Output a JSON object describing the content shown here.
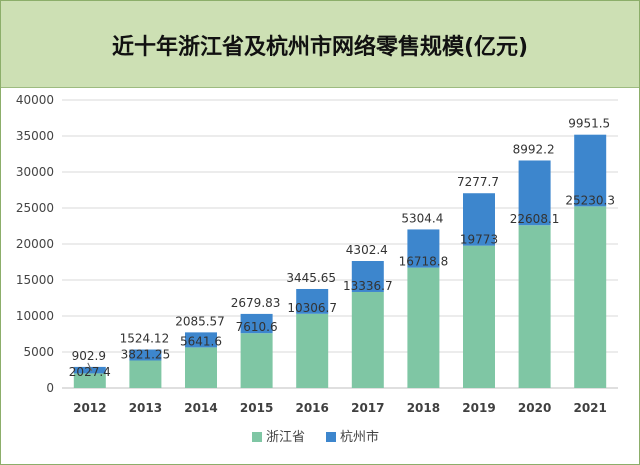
{
  "chart_data": {
    "type": "bar",
    "stacked": true,
    "title": "近十年浙江省及杭州市网络零售规模(亿元)",
    "xlabel": "",
    "ylabel": "",
    "categories": [
      "2012",
      "2013",
      "2014",
      "2015",
      "2016",
      "2017",
      "2018",
      "2019",
      "2020",
      "2021"
    ],
    "series": [
      {
        "name": "浙江省",
        "color": "#7fc6a4",
        "values": [
          2027.4,
          3821.25,
          5641.6,
          7610.6,
          10306.7,
          13336.7,
          16718.8,
          19773,
          22608.1,
          25230.3
        ],
        "labels": [
          "2027.4",
          "3821.25",
          "5641.6",
          "7610.6",
          "10306.7",
          "13336.7",
          "16718.8",
          "19773",
          "22608.1",
          "25230.3"
        ]
      },
      {
        "name": "杭州市",
        "color": "#3d86cd",
        "values": [
          902.9,
          1524.12,
          2085.57,
          2679.83,
          3445.65,
          4302.4,
          5304.4,
          7277.7,
          8992.2,
          9951.5
        ],
        "labels": [
          "902.9",
          "1524.12",
          "2085.57",
          "2679.83",
          "3445.65",
          "4302.4",
          "5304.4",
          "7277.7",
          "8992.2",
          "9951.5"
        ]
      }
    ],
    "ylim": [
      0,
      40000
    ],
    "yticks": [
      0,
      5000,
      10000,
      15000,
      20000,
      25000,
      30000,
      35000,
      40000
    ],
    "ytick_labels": [
      "0",
      "5000",
      "10000",
      "15000",
      "20000",
      "25000",
      "30000",
      "35000",
      "40000"
    ],
    "grid": true,
    "legend_position": "bottom-center"
  }
}
